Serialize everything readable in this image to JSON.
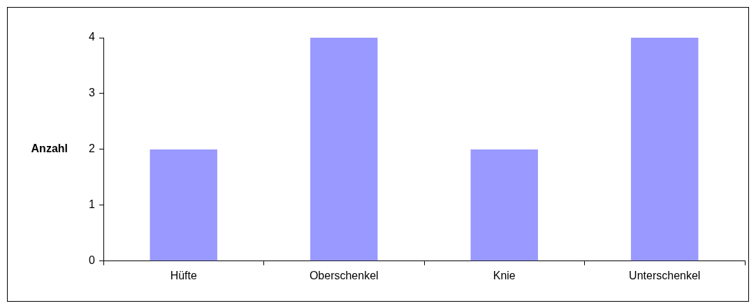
{
  "chart_data": {
    "type": "bar",
    "ylabel": "Anzahl",
    "categories": [
      "Hüfte",
      "Oberschenkel",
      "Knie",
      "Unterschenkel"
    ],
    "values": [
      2,
      4,
      2,
      4
    ],
    "color": "#9999ff",
    "ylim": [
      0,
      4
    ],
    "yticks": [
      0,
      1,
      2,
      3,
      4
    ],
    "grid": false,
    "legend": false
  }
}
